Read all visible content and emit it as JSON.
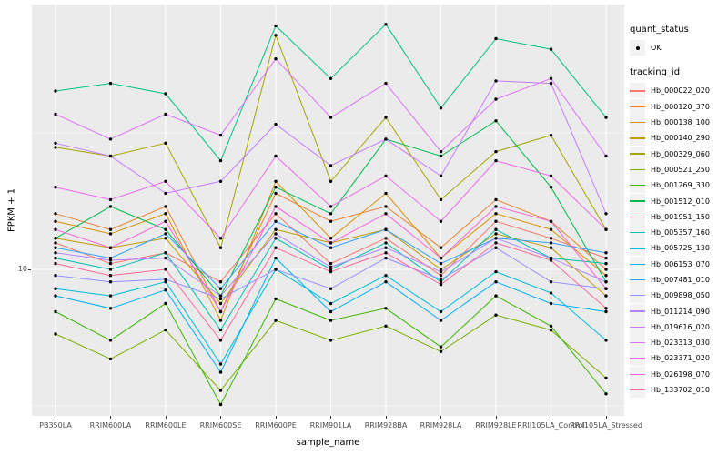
{
  "chart": {
    "y_axis": {
      "title": "FPKM + 1",
      "tick_label": "10",
      "scale": "log10"
    },
    "x_axis": {
      "title": "sample_name"
    },
    "colors": {
      "panel_bg": "#EBEBEB",
      "grid": "#FFFFFF",
      "tick": "#333333",
      "tick_label": "#4D4D4D",
      "point": "#000000",
      "legend_key_bg": "#F2F2F2"
    }
  },
  "legend": {
    "quant_status": {
      "title": "quant_status",
      "items": [
        {
          "label": "OK",
          "marker": "point"
        }
      ]
    },
    "tracking_id": {
      "title": "tracking_id"
    }
  },
  "chart_data": {
    "type": "line",
    "x": [
      "PB350LA",
      "RRIM600LA",
      "RRIM600LE",
      "RRIM600SE",
      "RRIM600PE",
      "RRIM901LA",
      "RRIM928BA",
      "RRIM928LA",
      "RRIM928LE",
      "RRII105LA_Control",
      "RRII105LA_Stressed"
    ],
    "xlabel": "sample_name",
    "ylabel": "FPKM + 1",
    "yscale": "log10",
    "yticks": [
      10
    ],
    "ylim": [
      2.8,
      95
    ],
    "grid": true,
    "legend_position": "right",
    "point_marker": "black dot on every value (quant_status = OK)",
    "values_are_estimates": true,
    "series": [
      {
        "name": "Hb_000022_020",
        "color": "#F8766D",
        "values": [
          12.5,
          10.5,
          11.5,
          9.0,
          16.0,
          10.5,
          13.0,
          9.5,
          15.0,
          13.0,
          11.0
        ]
      },
      {
        "name": "Hb_000120_370",
        "color": "#EA8331",
        "values": [
          16.0,
          14.0,
          17.0,
          7.0,
          19.0,
          15.0,
          17.0,
          12.0,
          18.0,
          15.0,
          10.0
        ]
      },
      {
        "name": "Hb_000138_100",
        "color": "#D89000",
        "values": [
          15.0,
          13.5,
          16.0,
          6.5,
          21.0,
          13.0,
          19.0,
          11.0,
          16.0,
          14.0,
          9.5
        ]
      },
      {
        "name": "Hb_000140_290",
        "color": "#C09B00",
        "values": [
          13.0,
          12.0,
          13.0,
          7.5,
          14.0,
          12.5,
          14.0,
          10.0,
          13.5,
          12.0,
          8.0
        ]
      },
      {
        "name": "Hb_000329_060",
        "color": "#A3A500",
        "values": [
          28.0,
          26.0,
          29.0,
          12.0,
          72.0,
          21.0,
          36.0,
          18.0,
          27.0,
          31.0,
          14.0
        ]
      },
      {
        "name": "Hb_000521_250",
        "color": "#7CAE00",
        "values": [
          5.8,
          4.7,
          6.0,
          3.6,
          6.5,
          5.5,
          6.2,
          5.0,
          6.8,
          6.0,
          4.0
        ]
      },
      {
        "name": "Hb_001269_330",
        "color": "#39B600",
        "values": [
          7.0,
          5.5,
          7.5,
          3.2,
          7.8,
          6.5,
          7.2,
          5.2,
          8.0,
          6.2,
          3.5
        ]
      },
      {
        "name": "Hb_001512_010",
        "color": "#00BB4E",
        "values": [
          13.0,
          17.0,
          14.0,
          8.0,
          20.0,
          16.0,
          30.0,
          26.0,
          35.0,
          20.0,
          9.0
        ]
      },
      {
        "name": "Hb_001951_150",
        "color": "#00C087",
        "values": [
          45.0,
          48.0,
          44.0,
          25.0,
          78.0,
          50.0,
          79.0,
          39.0,
          70.0,
          64.0,
          36.0
        ]
      },
      {
        "name": "Hb_005357_160",
        "color": "#00C0B2",
        "values": [
          11.0,
          10.0,
          11.5,
          6.0,
          13.0,
          10.0,
          12.5,
          9.0,
          14.0,
          11.0,
          10.5
        ]
      },
      {
        "name": "Hb_005725_130",
        "color": "#00BCD8",
        "values": [
          8.5,
          8.0,
          9.0,
          4.5,
          10.0,
          7.5,
          9.5,
          7.0,
          9.8,
          8.2,
          5.5
        ]
      },
      {
        "name": "Hb_006153_070",
        "color": "#00B0F6",
        "values": [
          8.0,
          7.2,
          8.4,
          4.2,
          11.0,
          7.0,
          9.0,
          6.5,
          9.0,
          7.5,
          7.0
        ]
      },
      {
        "name": "Hb_007481_010",
        "color": "#35A2FF",
        "values": [
          12.0,
          11.0,
          13.5,
          8.5,
          15.0,
          12.0,
          14.0,
          10.5,
          13.0,
          12.5,
          11.5
        ]
      },
      {
        "name": "Hb_009898_050",
        "color": "#9590FF",
        "values": [
          9.5,
          9.0,
          9.2,
          7.8,
          10.0,
          8.5,
          11.0,
          9.2,
          12.0,
          9.0,
          8.5
        ]
      },
      {
        "name": "Hb_011214_090",
        "color": "#B284FF",
        "values": [
          11.5,
          10.8,
          11.0,
          8.0,
          13.5,
          10.2,
          12.0,
          9.8,
          13.0,
          11.0,
          9.0
        ]
      },
      {
        "name": "Hb_019616_020",
        "color": "#C77CFF",
        "values": [
          29.0,
          26.0,
          19.0,
          21.0,
          34.0,
          24.0,
          30.0,
          22.0,
          49.0,
          48.0,
          16.0
        ]
      },
      {
        "name": "Hb_023313_030",
        "color": "#DC71FA",
        "values": [
          37.0,
          30.0,
          37.0,
          31.0,
          59.0,
          36.0,
          48.0,
          27.0,
          42.0,
          50.0,
          26.0
        ]
      },
      {
        "name": "Hb_023371_020",
        "color": "#ED68EC",
        "values": [
          20.0,
          18.0,
          21.0,
          13.0,
          26.0,
          17.0,
          22.0,
          15.0,
          25.0,
          22.0,
          14.0
        ]
      },
      {
        "name": "Hb_026198_070",
        "color": "#FA62DB",
        "values": [
          14.0,
          12.0,
          15.0,
          7.0,
          17.0,
          12.5,
          16.0,
          11.0,
          17.0,
          15.0,
          8.5
        ]
      },
      {
        "name": "Hb_133702_010",
        "color": "#FF689E",
        "values": [
          10.5,
          9.5,
          10.0,
          5.5,
          12.0,
          9.8,
          11.5,
          8.8,
          12.5,
          10.8,
          7.2
        ]
      }
    ]
  }
}
